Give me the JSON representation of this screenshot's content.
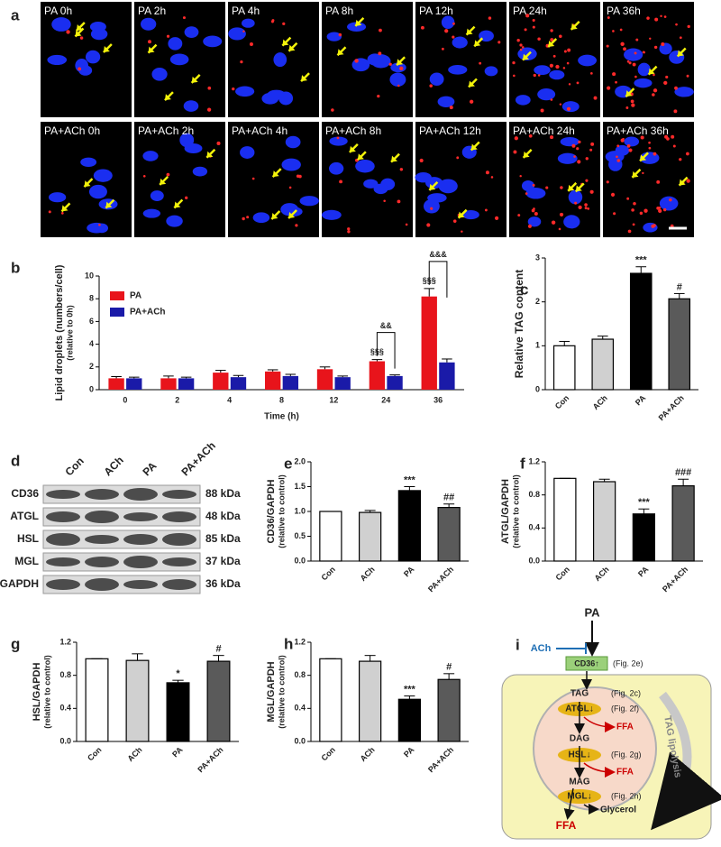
{
  "micrographs": {
    "panel": "a",
    "rows": [
      [
        "PA 0h",
        "PA 2h",
        "PA 4h",
        "PA 8h",
        "PA 12h",
        "PA 24h",
        "PA 36h"
      ],
      [
        "PA+ACh 0h",
        "PA+ACh 2h",
        "PA+ACh 4h",
        "PA+ACh 8h",
        "PA+ACh 12h",
        "PA+ACh 24h",
        "PA+ACh 36h"
      ]
    ]
  },
  "chart_data": [
    {
      "type": "bar",
      "panel": "b",
      "ylabel": "Lipid droplets (numbers/cell)",
      "ylabel_note": "(relative to 0h)",
      "xlabel": "Time (h)",
      "categories": [
        "0",
        "2",
        "4",
        "8",
        "12",
        "24",
        "36"
      ],
      "series": [
        {
          "name": "PA",
          "color": "#e8141b",
          "values": [
            1,
            1,
            1.5,
            1.6,
            1.8,
            2.5,
            8.2
          ],
          "errors": [
            0.15,
            0.2,
            0.2,
            0.15,
            0.2,
            0.15,
            0.7
          ]
        },
        {
          "name": "PA+ACh",
          "color": "#1a1aa8",
          "values": [
            1,
            1,
            1.1,
            1.2,
            1.1,
            1.2,
            2.4
          ],
          "errors": [
            0.1,
            0.1,
            0.15,
            0.15,
            0.1,
            0.1,
            0.3
          ]
        }
      ],
      "annotations": [
        {
          "text": "§§§",
          "category": "24",
          "series": "PA"
        },
        {
          "text": "&&",
          "category": "24",
          "bracket": true
        },
        {
          "text": "§§§",
          "category": "36",
          "series": "PA"
        },
        {
          "text": "&&&",
          "category": "36",
          "bracket": true
        }
      ],
      "ylim": [
        0,
        10
      ],
      "yticks": [
        0,
        2,
        4,
        6,
        8,
        10
      ],
      "legend": "upper left"
    },
    {
      "type": "bar",
      "panel": "c",
      "ylabel": "Relative TAG content",
      "categories": [
        "Con",
        "ACh",
        "PA",
        "PA+ACh"
      ],
      "values": [
        1,
        1.15,
        2.65,
        2.07
      ],
      "errors": [
        0.1,
        0.07,
        0.15,
        0.12
      ],
      "colors": [
        "#ffffff",
        "#d0d0d0",
        "#000000",
        "#5a5a5a"
      ],
      "significance": [
        null,
        null,
        "***",
        "#"
      ],
      "ylim": [
        0,
        3
      ],
      "yticks": [
        0,
        1,
        2,
        3
      ]
    },
    {
      "type": "bar",
      "panel": "e",
      "ylabel": "CD36/GAPDH",
      "ylabel_note": "(relative to control)",
      "categories": [
        "Con",
        "ACh",
        "PA",
        "PA+ACh"
      ],
      "values": [
        1,
        0.98,
        1.42,
        1.08
      ],
      "errors": [
        0,
        0.04,
        0.08,
        0.07
      ],
      "colors": [
        "#ffffff",
        "#d0d0d0",
        "#000000",
        "#5a5a5a"
      ],
      "significance": [
        null,
        null,
        "***",
        "##"
      ],
      "ylim": [
        0,
        2
      ],
      "yticks": [
        {
          "value": 0,
          "label": "0.0"
        },
        0.5,
        {
          "value": 1,
          "label": "1.0"
        },
        1.5,
        {
          "value": 2,
          "label": "2.0"
        }
      ]
    },
    {
      "type": "bar",
      "panel": "f",
      "ylabel": "ATGL/GAPDH",
      "ylabel_note": "(relative to control)",
      "categories": [
        "Con",
        "ACh",
        "PA",
        "PA+ACh"
      ],
      "values": [
        1,
        0.96,
        0.57,
        0.91
      ],
      "errors": [
        0,
        0.03,
        0.06,
        0.08
      ],
      "colors": [
        "#ffffff",
        "#d0d0d0",
        "#000000",
        "#5a5a5a"
      ],
      "significance": [
        null,
        null,
        "***",
        "###"
      ],
      "ylim": [
        0,
        1.2
      ],
      "yticks": [
        {
          "value": 0,
          "label": "0.0"
        },
        0.4,
        0.8,
        1.2
      ]
    },
    {
      "type": "bar",
      "panel": "g",
      "ylabel": "HSL/GAPDH",
      "ylabel_note": "(relative to control)",
      "categories": [
        "Con",
        "ACh",
        "PA",
        "PA+ACh"
      ],
      "values": [
        1,
        0.98,
        0.71,
        0.97
      ],
      "errors": [
        0,
        0.08,
        0.03,
        0.07
      ],
      "colors": [
        "#ffffff",
        "#d0d0d0",
        "#000000",
        "#5a5a5a"
      ],
      "significance": [
        null,
        null,
        "*",
        "#"
      ],
      "ylim": [
        0,
        1.2
      ],
      "yticks": [
        {
          "value": 0,
          "label": "0.0"
        },
        0.4,
        0.8,
        1.2
      ]
    },
    {
      "type": "bar",
      "panel": "h",
      "ylabel": "MGL/GAPDH",
      "ylabel_note": "(relative to control)",
      "categories": [
        "Con",
        "ACh",
        "PA",
        "PA+ACh"
      ],
      "values": [
        1,
        0.97,
        0.51,
        0.75
      ],
      "errors": [
        0,
        0.07,
        0.04,
        0.07
      ],
      "colors": [
        "#ffffff",
        "#d0d0d0",
        "#000000",
        "#5a5a5a"
      ],
      "significance": [
        null,
        null,
        "***",
        "#"
      ],
      "ylim": [
        0,
        1.2
      ],
      "yticks": [
        {
          "value": 0,
          "label": "0.0"
        },
        0.4,
        0.8,
        1.2
      ]
    }
  ],
  "blot": {
    "panel": "d",
    "lanes": [
      "Con",
      "ACh",
      "PA",
      "PA+ACh"
    ],
    "bands": [
      {
        "name": "CD36",
        "size": "88 kDa"
      },
      {
        "name": "ATGL",
        "size": "48 kDa"
      },
      {
        "name": "HSL",
        "size": "85 kDa"
      },
      {
        "name": "MGL",
        "size": "37 kDa"
      },
      {
        "name": "GAPDH",
        "size": "36 kDa"
      }
    ]
  },
  "diagram": {
    "panel": "i",
    "input": "PA",
    "inhibitor": "ACh",
    "receptor": "CD36↑",
    "receptor_ref": "(Fig. 2e)",
    "steps": [
      {
        "substrate": "TAG",
        "ref": "(Fig. 2c)"
      },
      {
        "enzyme": "ATGL↓",
        "ref": "(Fig. 2f)",
        "product": "FFA"
      },
      {
        "substrate": "DAG"
      },
      {
        "enzyme": "HSL↓",
        "ref": "(Fig. 2g)",
        "product": "FFA"
      },
      {
        "substrate": "MAG"
      },
      {
        "enzyme": "MGL↓",
        "ref": "(Fig. 2h)",
        "product": "Glycerol"
      }
    ],
    "output": "FFA",
    "process": "TAG lipolysis"
  }
}
